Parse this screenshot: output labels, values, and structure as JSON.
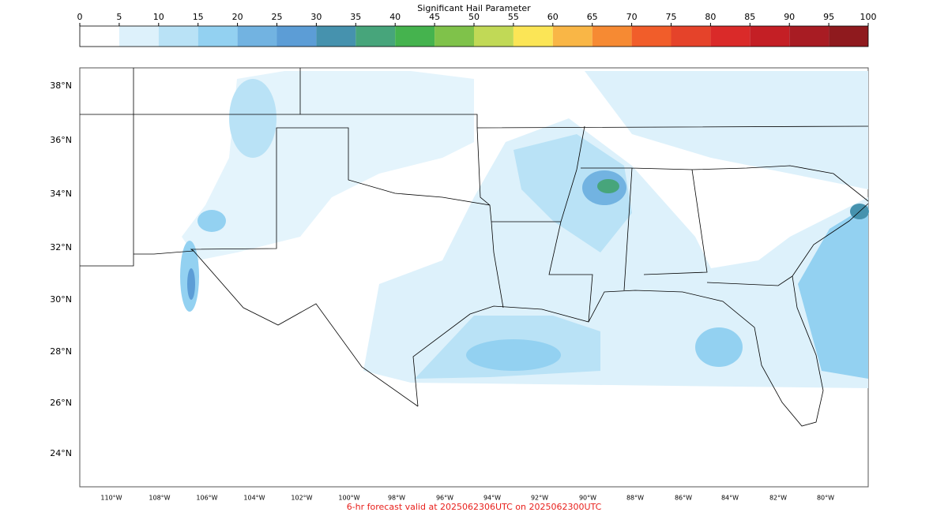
{
  "colorbar": {
    "title": "Significant Hail Parameter",
    "ticks": [
      0,
      5,
      10,
      15,
      20,
      25,
      30,
      35,
      40,
      45,
      50,
      55,
      60,
      65,
      70,
      75,
      80,
      85,
      90,
      95,
      100
    ],
    "colors": [
      "#ffffff",
      "#ddf1fb",
      "#b9e2f6",
      "#93d1f1",
      "#72b3e1",
      "#5c9dd6",
      "#4692ae",
      "#47a57b",
      "#45b34e",
      "#7fc24a",
      "#c1d956",
      "#fbe556",
      "#f9b646",
      "#f68a33",
      "#f15d2a",
      "#e5432a",
      "#da2a29",
      "#c41f25",
      "#a81c23",
      "#8f1a1e"
    ]
  },
  "map": {
    "lat_labels": [
      "38°N",
      "36°N",
      "34°N",
      "32°N",
      "30°N",
      "28°N",
      "26°N",
      "24°N"
    ],
    "lon_labels": [
      "110°W",
      "108°W",
      "106°W",
      "104°W",
      "102°W",
      "100°W",
      "98°W",
      "96°W",
      "94°W",
      "92°W",
      "90°W",
      "88°W",
      "86°W",
      "84°W",
      "82°W",
      "80°W"
    ]
  },
  "footer": "6-hr forecast valid at 2025062306UTC on 2025062300UTC"
}
